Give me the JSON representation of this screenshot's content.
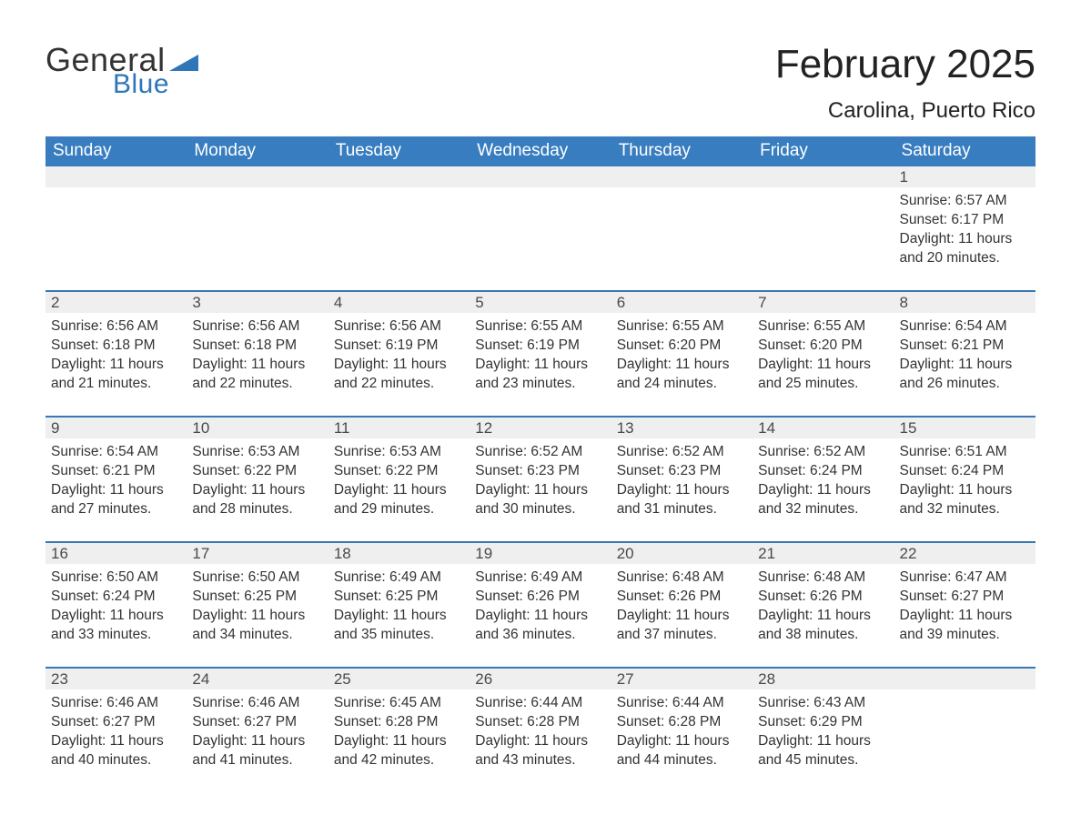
{
  "brand": {
    "word1": "General",
    "word2": "Blue",
    "brand_color": "#2f76b9"
  },
  "title": "February 2025",
  "location": "Carolina, Puerto Rico",
  "colors": {
    "header_fill": "#387dbf",
    "row_top_border": "#3777b5",
    "date_band": "#efefef",
    "background": "#ffffff",
    "text": "#222222"
  },
  "dow": [
    "Sunday",
    "Monday",
    "Tuesday",
    "Wednesday",
    "Thursday",
    "Friday",
    "Saturday"
  ],
  "labels": {
    "sunrise": "Sunrise",
    "sunset": "Sunset",
    "daylight": "Daylight"
  },
  "weeks": [
    [
      {
        "blank": true
      },
      {
        "blank": true
      },
      {
        "blank": true
      },
      {
        "blank": true
      },
      {
        "blank": true
      },
      {
        "blank": true
      },
      {
        "day": "1",
        "sunrise": "6:57 AM",
        "sunset": "6:17 PM",
        "daylight": "11 hours and 20 minutes."
      }
    ],
    [
      {
        "day": "2",
        "sunrise": "6:56 AM",
        "sunset": "6:18 PM",
        "daylight": "11 hours and 21 minutes."
      },
      {
        "day": "3",
        "sunrise": "6:56 AM",
        "sunset": "6:18 PM",
        "daylight": "11 hours and 22 minutes."
      },
      {
        "day": "4",
        "sunrise": "6:56 AM",
        "sunset": "6:19 PM",
        "daylight": "11 hours and 22 minutes."
      },
      {
        "day": "5",
        "sunrise": "6:55 AM",
        "sunset": "6:19 PM",
        "daylight": "11 hours and 23 minutes."
      },
      {
        "day": "6",
        "sunrise": "6:55 AM",
        "sunset": "6:20 PM",
        "daylight": "11 hours and 24 minutes."
      },
      {
        "day": "7",
        "sunrise": "6:55 AM",
        "sunset": "6:20 PM",
        "daylight": "11 hours and 25 minutes."
      },
      {
        "day": "8",
        "sunrise": "6:54 AM",
        "sunset": "6:21 PM",
        "daylight": "11 hours and 26 minutes."
      }
    ],
    [
      {
        "day": "9",
        "sunrise": "6:54 AM",
        "sunset": "6:21 PM",
        "daylight": "11 hours and 27 minutes."
      },
      {
        "day": "10",
        "sunrise": "6:53 AM",
        "sunset": "6:22 PM",
        "daylight": "11 hours and 28 minutes."
      },
      {
        "day": "11",
        "sunrise": "6:53 AM",
        "sunset": "6:22 PM",
        "daylight": "11 hours and 29 minutes."
      },
      {
        "day": "12",
        "sunrise": "6:52 AM",
        "sunset": "6:23 PM",
        "daylight": "11 hours and 30 minutes."
      },
      {
        "day": "13",
        "sunrise": "6:52 AM",
        "sunset": "6:23 PM",
        "daylight": "11 hours and 31 minutes."
      },
      {
        "day": "14",
        "sunrise": "6:52 AM",
        "sunset": "6:24 PM",
        "daylight": "11 hours and 32 minutes."
      },
      {
        "day": "15",
        "sunrise": "6:51 AM",
        "sunset": "6:24 PM",
        "daylight": "11 hours and 32 minutes."
      }
    ],
    [
      {
        "day": "16",
        "sunrise": "6:50 AM",
        "sunset": "6:24 PM",
        "daylight": "11 hours and 33 minutes."
      },
      {
        "day": "17",
        "sunrise": "6:50 AM",
        "sunset": "6:25 PM",
        "daylight": "11 hours and 34 minutes."
      },
      {
        "day": "18",
        "sunrise": "6:49 AM",
        "sunset": "6:25 PM",
        "daylight": "11 hours and 35 minutes."
      },
      {
        "day": "19",
        "sunrise": "6:49 AM",
        "sunset": "6:26 PM",
        "daylight": "11 hours and 36 minutes."
      },
      {
        "day": "20",
        "sunrise": "6:48 AM",
        "sunset": "6:26 PM",
        "daylight": "11 hours and 37 minutes."
      },
      {
        "day": "21",
        "sunrise": "6:48 AM",
        "sunset": "6:26 PM",
        "daylight": "11 hours and 38 minutes."
      },
      {
        "day": "22",
        "sunrise": "6:47 AM",
        "sunset": "6:27 PM",
        "daylight": "11 hours and 39 minutes."
      }
    ],
    [
      {
        "day": "23",
        "sunrise": "6:46 AM",
        "sunset": "6:27 PM",
        "daylight": "11 hours and 40 minutes."
      },
      {
        "day": "24",
        "sunrise": "6:46 AM",
        "sunset": "6:27 PM",
        "daylight": "11 hours and 41 minutes."
      },
      {
        "day": "25",
        "sunrise": "6:45 AM",
        "sunset": "6:28 PM",
        "daylight": "11 hours and 42 minutes."
      },
      {
        "day": "26",
        "sunrise": "6:44 AM",
        "sunset": "6:28 PM",
        "daylight": "11 hours and 43 minutes."
      },
      {
        "day": "27",
        "sunrise": "6:44 AM",
        "sunset": "6:28 PM",
        "daylight": "11 hours and 44 minutes."
      },
      {
        "day": "28",
        "sunrise": "6:43 AM",
        "sunset": "6:29 PM",
        "daylight": "11 hours and 45 minutes."
      },
      {
        "blank": true
      }
    ]
  ]
}
